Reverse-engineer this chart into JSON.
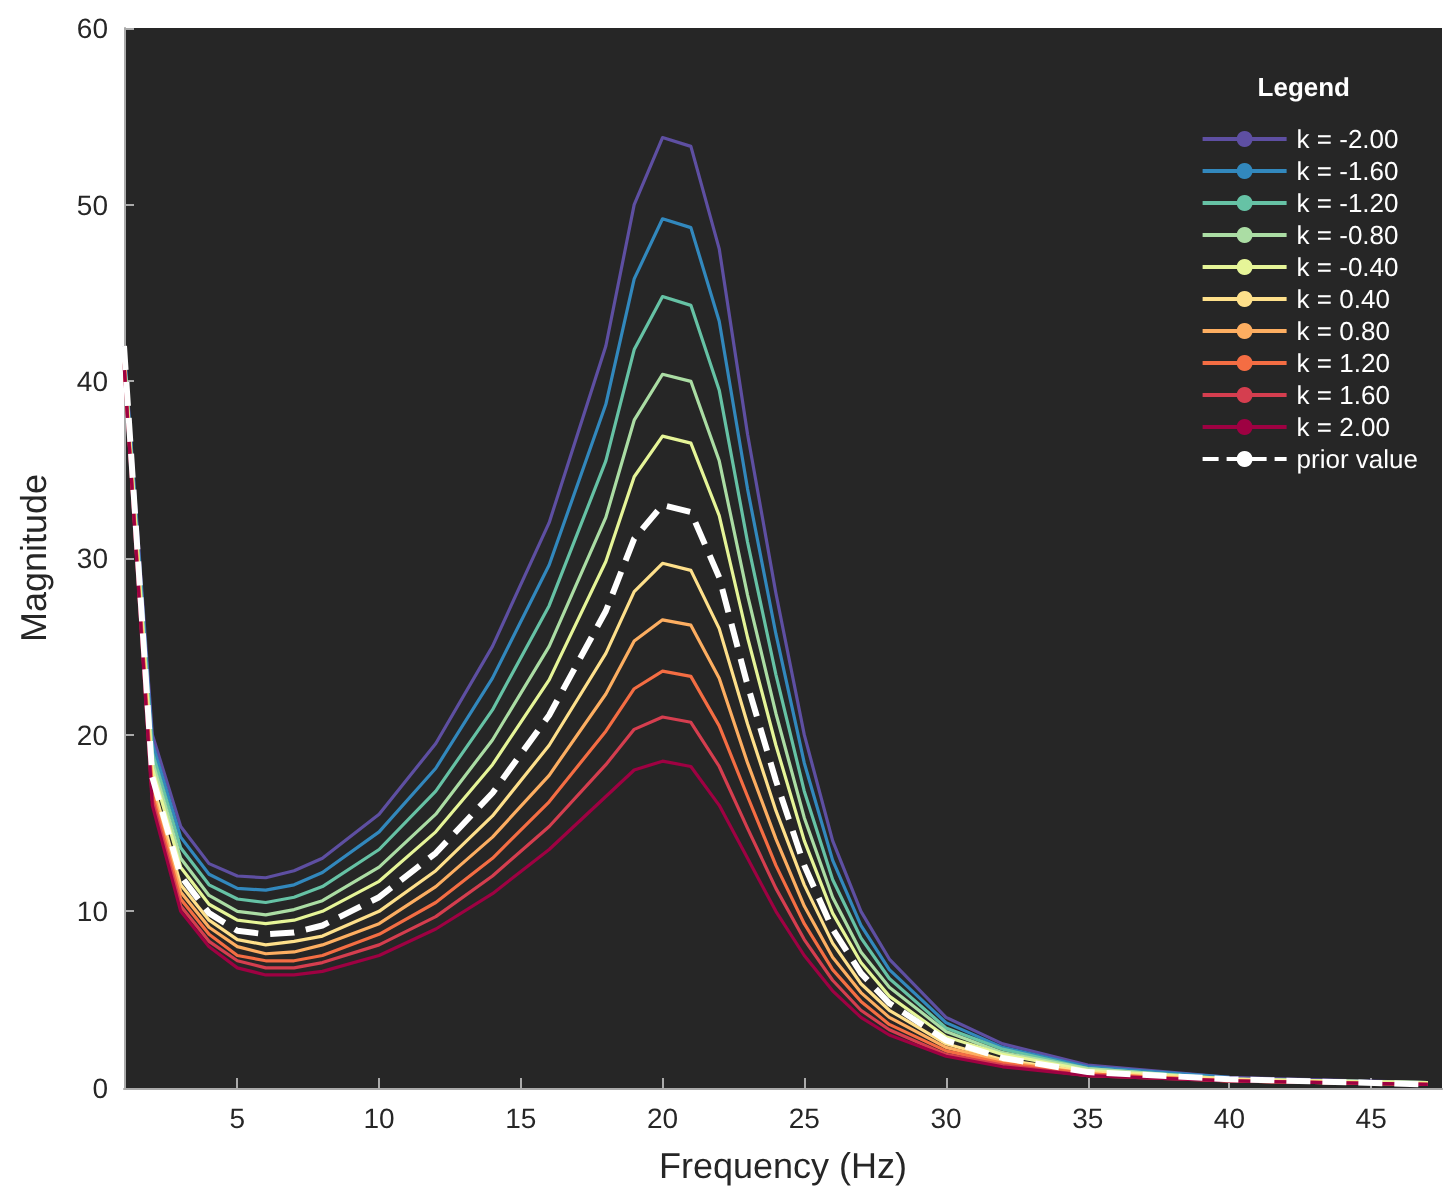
{
  "chart_data": {
    "type": "line",
    "xlabel": "Frequency (Hz)",
    "ylabel": "Magnitude",
    "legend_title": "Legend",
    "legend": "top right",
    "marker": "none",
    "xlim": [
      1,
      47.5
    ],
    "xticks": [
      5,
      10,
      15,
      20,
      25,
      30,
      35,
      40,
      45
    ],
    "ylim": [
      0,
      60
    ],
    "yticks": [
      0,
      10,
      20,
      30,
      40,
      50,
      60
    ],
    "x": [
      1,
      2,
      3,
      4,
      5,
      6,
      7,
      8,
      10,
      12,
      14,
      16,
      18,
      19,
      20,
      21,
      22,
      23,
      24,
      25,
      26,
      27,
      28,
      30,
      32,
      35,
      40,
      47
    ],
    "series": [
      {
        "name": "k = -2.00",
        "color": "#5e4fa2",
        "line_style": "solid",
        "values": [
          42,
          20,
          14.8,
          12.7,
          12.0,
          11.9,
          12.3,
          13,
          15.5,
          19.5,
          25,
          32,
          42,
          50,
          53.8,
          53.3,
          47.5,
          37,
          28,
          20,
          14,
          10,
          7.3,
          4,
          2.5,
          1.3,
          0.6,
          0.3
        ]
      },
      {
        "name": "k = -1.60",
        "color": "#3288bd",
        "line_style": "solid",
        "values": [
          41.9,
          19.5,
          14.2,
          12.1,
          11.3,
          11.2,
          11.5,
          12.2,
          14.5,
          18.1,
          23.2,
          29.6,
          38.7,
          45.8,
          49.2,
          48.7,
          43.4,
          33.9,
          25.7,
          18.4,
          12.9,
          9.2,
          6.7,
          3.7,
          2.3,
          1.2,
          0.6,
          null
        ]
      },
      {
        "name": "k = -1.20",
        "color": "#66c2a5",
        "line_style": "solid",
        "values": [
          41.7,
          19.0,
          13.6,
          11.5,
          10.7,
          10.5,
          10.8,
          11.4,
          13.5,
          16.8,
          21.4,
          27.3,
          35.5,
          41.8,
          44.8,
          44.3,
          39.5,
          30.9,
          23.4,
          16.8,
          11.8,
          8.5,
          6.2,
          3.4,
          2.2,
          1.1,
          0.5,
          0.3
        ]
      },
      {
        "name": "k = -0.80",
        "color": "#abdda4",
        "line_style": "solid",
        "values": [
          41.6,
          18.5,
          13.0,
          10.9,
          10.0,
          9.8,
          10.1,
          10.6,
          12.5,
          15.5,
          19.7,
          25.0,
          32.3,
          37.8,
          40.4,
          40.0,
          35.5,
          27.9,
          21.2,
          15.3,
          10.8,
          7.7,
          5.7,
          3.2,
          2.0,
          1.1,
          0.5,
          0.3
        ]
      },
      {
        "name": "k = -0.40",
        "color": "#e6f598",
        "line_style": "solid",
        "values": [
          41.5,
          18.1,
          12.5,
          10.4,
          9.5,
          9.3,
          9.5,
          10.0,
          11.7,
          14.5,
          18.3,
          23.1,
          29.8,
          34.6,
          36.9,
          36.5,
          32.4,
          25.5,
          19.4,
          14.0,
          9.9,
          7.1,
          5.2,
          2.9,
          1.9,
          1.0,
          0.5,
          0.3
        ]
      },
      {
        "name": "k = 0.40",
        "color": "#fee08b",
        "line_style": "solid",
        "values": [
          41.3,
          17.3,
          11.5,
          9.5,
          8.4,
          8.1,
          8.3,
          8.6,
          10.0,
          12.3,
          15.4,
          19.4,
          24.6,
          28.1,
          29.7,
          29.3,
          26.0,
          20.6,
          15.7,
          11.5,
          8.2,
          5.9,
          4.4,
          2.5,
          1.6,
          0.9,
          0.5,
          0.2
        ]
      },
      {
        "name": "k = 0.80",
        "color": "#fdae61",
        "line_style": "solid",
        "values": [
          41.2,
          16.9,
          11.1,
          9.1,
          8.0,
          7.6,
          7.7,
          8.1,
          9.3,
          11.4,
          14.2,
          17.7,
          22.3,
          25.3,
          26.5,
          26.2,
          23.2,
          18.4,
          14.1,
          10.3,
          7.4,
          5.4,
          4.0,
          2.3,
          1.5,
          0.8,
          0.4,
          0.2
        ]
      },
      {
        "name": "k = 1.20",
        "color": "#f46d43",
        "line_style": "solid",
        "values": [
          41.1,
          16.6,
          10.7,
          8.7,
          7.5,
          7.2,
          7.2,
          7.5,
          8.7,
          10.5,
          13.0,
          16.2,
          20.2,
          22.6,
          23.6,
          23.3,
          20.5,
          16.5,
          12.6,
          9.3,
          6.7,
          4.9,
          3.6,
          2.1,
          1.4,
          0.8,
          0.4,
          0.2
        ]
      },
      {
        "name": "k = 1.60",
        "color": "#d53e4f",
        "line_style": "solid",
        "values": [
          41.1,
          16.3,
          10.3,
          8.3,
          7.2,
          6.8,
          6.8,
          7.1,
          8.1,
          9.7,
          12.0,
          14.8,
          18.3,
          20.3,
          21.0,
          20.7,
          18.2,
          14.7,
          11.3,
          8.4,
          6.1,
          4.4,
          3.3,
          1.9,
          1.3,
          0.7,
          0.4,
          0.2
        ]
      },
      {
        "name": "k = 2.00",
        "color": "#9e0142",
        "line_style": "solid",
        "values": [
          41,
          16,
          10,
          8,
          6.8,
          6.4,
          6.4,
          6.6,
          7.5,
          9,
          11,
          13.5,
          16.5,
          18,
          18.5,
          18.2,
          16,
          13,
          10,
          7.5,
          5.5,
          4,
          3,
          1.8,
          1.2,
          0.7,
          0.4,
          0.2
        ]
      },
      {
        "name": "prior value",
        "color": "#ffffff",
        "line_style": "dashed",
        "values": [
          42,
          17.6,
          12.0,
          9.9,
          8.9,
          8.7,
          8.8,
          9.2,
          10.8,
          13.3,
          16.7,
          21.1,
          27.0,
          31.1,
          33.0,
          32.6,
          28.9,
          22.8,
          17.4,
          12.6,
          9.0,
          6.5,
          4.8,
          2.7,
          1.7,
          0.9,
          0.5,
          0.2
        ]
      }
    ]
  }
}
